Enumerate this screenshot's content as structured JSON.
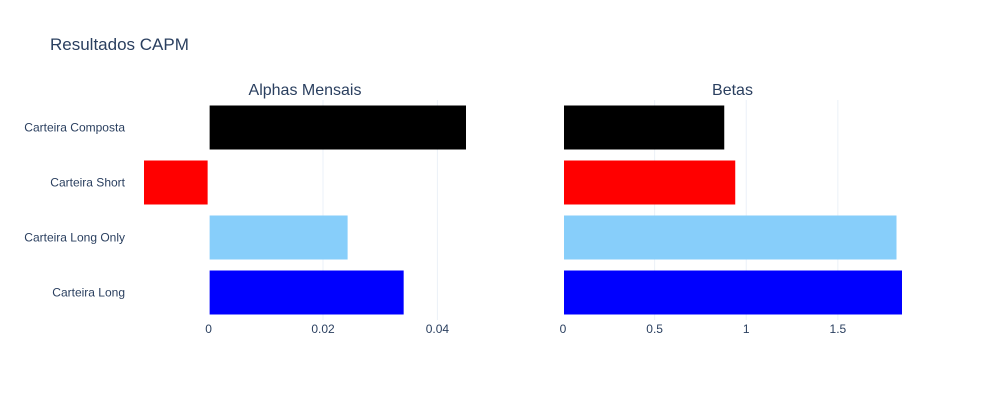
{
  "title": "Resultados CAPM",
  "chart_data": [
    {
      "type": "bar",
      "orientation": "horizontal",
      "title": "Alphas Mensais",
      "categories": [
        "Carteira Composta",
        "Carteira Short",
        "Carteira Long Only",
        "Carteira Long"
      ],
      "values": [
        0.045,
        -0.0113,
        0.0243,
        0.0341
      ],
      "colors": [
        "#000000",
        "#ff0000",
        "#87cefa",
        "#0000ff"
      ],
      "xlim": [
        -0.0113,
        0.045
      ],
      "xticks": [
        0,
        0.02,
        0.04
      ],
      "xtick_labels": [
        "0",
        "0.02",
        "0.04"
      ],
      "grid": true
    },
    {
      "type": "bar",
      "orientation": "horizontal",
      "title": "Betas",
      "categories": [
        "Carteira Composta",
        "Carteira Short",
        "Carteira Long Only",
        "Carteira Long"
      ],
      "values": [
        0.88,
        0.94,
        1.82,
        1.85
      ],
      "colors": [
        "#000000",
        "#ff0000",
        "#87cefa",
        "#0000ff"
      ],
      "xlim": [
        0,
        1.85
      ],
      "xticks": [
        0,
        0.5,
        1,
        1.5
      ],
      "xtick_labels": [
        "0",
        "0.5",
        "1",
        "1.5"
      ],
      "grid": true
    }
  ]
}
